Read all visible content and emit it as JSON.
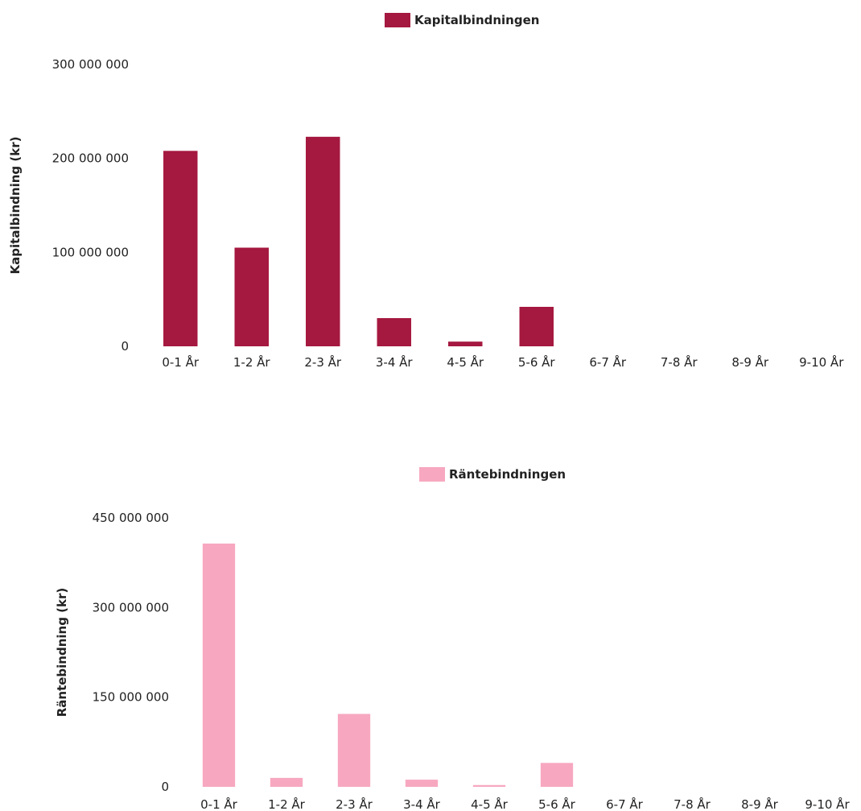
{
  "chart_data": [
    {
      "type": "bar",
      "categories": [
        "0-1 År",
        "1-2 År",
        "2-3 År",
        "3-4 År",
        "4-5 År",
        "5-6 År",
        "6-7 År",
        "7-8 År",
        "8-9 År",
        "9-10 År"
      ],
      "series": [
        {
          "name": "Kapitalbindningen",
          "color": "#a5183f",
          "values": [
            208000000,
            105000000,
            223000000,
            30000000,
            5000000,
            42000000,
            0,
            0,
            0,
            0
          ]
        }
      ],
      "title": "",
      "xlabel": "",
      "ylabel": "Kapitalbindning (kr)",
      "ylim": [
        0,
        300000000
      ],
      "yticks": [
        0,
        100000000,
        200000000,
        300000000
      ],
      "ytick_labels": [
        "0",
        "100 000 000",
        "200 000 000",
        "300 000 000"
      ],
      "grid": false,
      "legend": "top-center"
    },
    {
      "type": "bar",
      "categories": [
        "0-1 År",
        "1-2 År",
        "2-3 År",
        "3-4 År",
        "4-5 År",
        "5-6 År",
        "6-7 År",
        "7-8 År",
        "8-9 År",
        "9-10 År"
      ],
      "series": [
        {
          "name": "Räntebindningen",
          "color": "#f7a8c0",
          "values": [
            407000000,
            15000000,
            122000000,
            12000000,
            3000000,
            40000000,
            0,
            0,
            0,
            0
          ]
        }
      ],
      "title": "",
      "xlabel": "",
      "ylabel": "Räntebindning (kr)",
      "ylim": [
        0,
        450000000
      ],
      "yticks": [
        0,
        150000000,
        300000000,
        450000000
      ],
      "ytick_labels": [
        "0",
        "150 000 000",
        "300 000 000",
        "450 000 000"
      ],
      "grid": false,
      "legend": "top-center"
    }
  ]
}
